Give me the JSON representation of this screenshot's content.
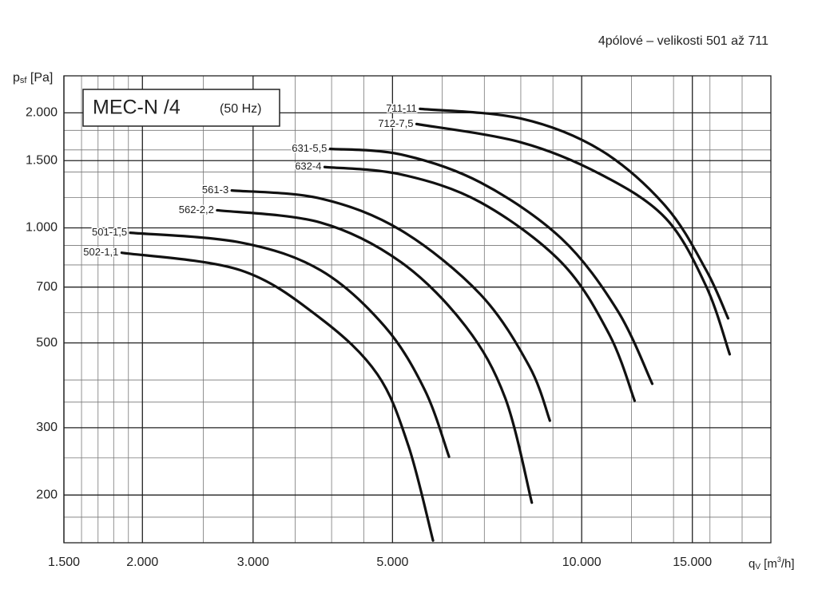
{
  "chart_data": {
    "type": "line",
    "subtitle": "4pólové – velikosti 501 až 711",
    "title": "MEC-N /4",
    "title_note": "(50 Hz)",
    "y_label": [
      "p",
      "sf",
      " [Pa]"
    ],
    "x_label": [
      "q",
      "V",
      " [m",
      "3",
      "/h]"
    ],
    "log_x": true,
    "log_y": true,
    "grid": true,
    "color": "#111111",
    "xlim": [
      1500,
      20000
    ],
    "ylim": [
      150,
      2500
    ],
    "xticks": [
      {
        "value": 1500,
        "label": "1.500"
      },
      {
        "value": 2000,
        "label": "2.000"
      },
      {
        "value": 3000,
        "label": "3.000"
      },
      {
        "value": 5000,
        "label": "5.000"
      },
      {
        "value": 10000,
        "label": "10.000"
      },
      {
        "value": 15000,
        "label": "15.000"
      }
    ],
    "yticks": [
      200,
      300,
      500,
      700,
      {
        "value": 1000,
        "label": "1.000"
      },
      {
        "value": 1500,
        "label": "1.500"
      },
      {
        "value": 2000,
        "label": "2.000"
      }
    ],
    "x_minor_grid": [
      1600,
      1700,
      1800,
      1900,
      2500,
      3500,
      4000,
      4500,
      6000,
      7000,
      8000,
      9000,
      12000,
      14000,
      16000,
      18000
    ],
    "y_minor_grid": [
      175,
      250,
      350,
      400,
      600,
      800,
      900,
      1200,
      1400,
      1600,
      1800
    ],
    "series": [
      {
        "name": "501-1,5",
        "x": [
          1913,
          2864,
          3840,
          4860,
          5630,
          6150
        ],
        "values": [
          971,
          916,
          775,
          552,
          376,
          252
        ]
      },
      {
        "name": "502-1,1",
        "x": [
          1854,
          2864,
          3840,
          4730,
          5300,
          5800
        ],
        "values": [
          861,
          775,
          580,
          414,
          269,
          152
        ]
      },
      {
        "name": "561-3",
        "x": [
          2775,
          3840,
          5160,
          6900,
          8250,
          8900
        ],
        "values": [
          1253,
          1194,
          985,
          670,
          435,
          313
        ]
      },
      {
        "name": "562-2,2",
        "x": [
          2630,
          3840,
          5160,
          6540,
          7560,
          8330
        ],
        "values": [
          1112,
          1033,
          813,
          552,
          358,
          191
        ]
      },
      {
        "name": "631-5,5",
        "x": [
          3980,
          5160,
          6900,
          9280,
          11400,
          12950
        ],
        "values": [
          1610,
          1556,
          1315,
          939,
          608,
          391
        ]
      },
      {
        "name": "632-4",
        "x": [
          3900,
          5160,
          6900,
          9280,
          11060,
          12140
        ],
        "values": [
          1443,
          1380,
          1167,
          813,
          527,
          353
        ]
      },
      {
        "name": "711-11",
        "x": [
          5530,
          8000,
          10730,
          13610,
          15780,
          17100
        ],
        "values": [
          2049,
          1933,
          1596,
          1138,
          775,
          580
        ]
      },
      {
        "name": "712-7,5",
        "x": [
          5460,
          8000,
          10730,
          13610,
          15780,
          17200
        ],
        "values": [
          1870,
          1675,
          1380,
          1059,
          703,
          467
        ]
      }
    ]
  }
}
